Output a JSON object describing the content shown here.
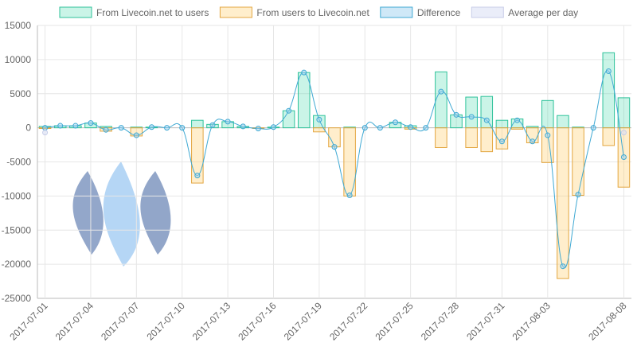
{
  "chart_data": {
    "type": "bar-line",
    "categories": [
      "2017-07-01",
      null,
      null,
      "2017-07-04",
      null,
      null,
      "2017-07-07",
      null,
      null,
      "2017-07-10",
      null,
      null,
      "2017-07-13",
      null,
      null,
      "2017-07-16",
      null,
      null,
      "2017-07-19",
      null,
      null,
      "2017-07-22",
      null,
      null,
      "2017-07-25",
      null,
      null,
      "2017-07-28",
      null,
      null,
      "2017-07-31",
      null,
      null,
      "2017-08-03",
      null,
      null,
      null,
      null,
      "2017-08-08"
    ],
    "series": [
      {
        "name": "From Livecoin.net to users",
        "kind": "bar",
        "color": "#2ec29a",
        "fill": "rgba(80,220,175,0.3)",
        "values": [
          200,
          300,
          300,
          700,
          200,
          0,
          100,
          100,
          0,
          0,
          1100,
          500,
          900,
          200,
          0,
          100,
          2500,
          8100,
          1800,
          0,
          100,
          0,
          0,
          800,
          300,
          0,
          8200,
          1900,
          4500,
          4600,
          1100,
          1300,
          200,
          4000,
          1800,
          100,
          0,
          11000,
          4400
        ]
      },
      {
        "name": "From users to Livecoin.net",
        "kind": "bar",
        "color": "#e3a640",
        "fill": "rgba(255,205,110,0.35)",
        "values": [
          -100,
          0,
          0,
          0,
          -500,
          0,
          -1200,
          0,
          0,
          0,
          -8100,
          0,
          0,
          0,
          -100,
          0,
          0,
          0,
          -600,
          -2800,
          -10000,
          0,
          0,
          0,
          -200,
          0,
          -2900,
          0,
          -2900,
          -3500,
          -3100,
          -200,
          -2200,
          -5100,
          -22100,
          -9900,
          0,
          -2600,
          -8700
        ]
      },
      {
        "name": "Difference",
        "kind": "line",
        "color": "#3fa9d3",
        "fill": "rgba(160,210,240,0.5)",
        "values": [
          0,
          300,
          300,
          700,
          -300,
          0,
          -1100,
          100,
          0,
          0,
          -7000,
          400,
          900,
          200,
          -100,
          100,
          2500,
          8100,
          1200,
          -2800,
          -9900,
          0,
          0,
          800,
          100,
          0,
          5300,
          1900,
          1600,
          1100,
          -2000,
          1100,
          -2000,
          -1100,
          -20300,
          -9800,
          0,
          8300,
          -4300
        ]
      },
      {
        "name": "Average per day",
        "kind": "points",
        "color": "#c8cde8",
        "fill": "rgba(220,225,245,0.6)",
        "values": [
          -700,
          null,
          null,
          null,
          null,
          null,
          null,
          null,
          null,
          null,
          null,
          null,
          null,
          null,
          null,
          null,
          null,
          null,
          null,
          null,
          null,
          null,
          null,
          null,
          null,
          null,
          null,
          null,
          null,
          null,
          null,
          null,
          null,
          null,
          null,
          null,
          null,
          null,
          -700
        ]
      }
    ],
    "ylim": [
      -25000,
      15000
    ],
    "yticks": [
      -25000,
      -20000,
      -15000,
      -10000,
      -5000,
      0,
      5000,
      10000,
      15000
    ],
    "grid": true
  }
}
